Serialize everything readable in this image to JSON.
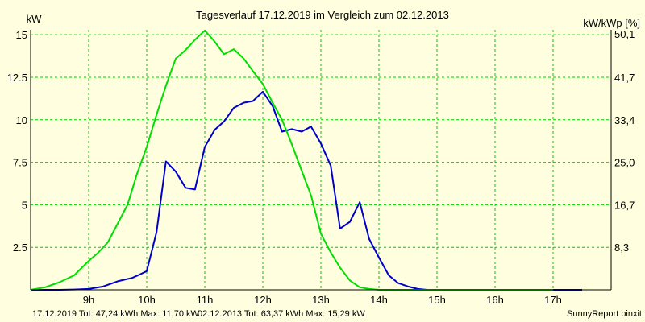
{
  "chart_data": {
    "type": "line",
    "title": "Tagesverlauf 17.12.2019 im Vergleich zum 02.12.2013",
    "ylabel_left": "kW",
    "ylabel_right": "kW/kWp [%]",
    "ylim": [
      0,
      15.29
    ],
    "y_ticks": [
      2.5,
      5,
      7.5,
      10,
      12.5,
      15
    ],
    "y_tick_labels": [
      "2.5",
      "5",
      "7.5",
      "10",
      "12.5",
      "15"
    ],
    "right_ticks": [
      2.5,
      5,
      7.5,
      10,
      12.5,
      15.05
    ],
    "right_tick_labels": [
      "8,3",
      "16,7",
      "25,0",
      "33,4",
      "41,7",
      "50,1"
    ],
    "xlim": [
      8.0,
      18.0
    ],
    "x_ticks": [
      9,
      10,
      11,
      12,
      13,
      14,
      15,
      16,
      17
    ],
    "x_tick_labels": [
      "9h",
      "10h",
      "11h",
      "12h",
      "13h",
      "14h",
      "15h",
      "16h",
      "17h"
    ],
    "grid": true,
    "colors": {
      "background": "#ffffe0",
      "grid": "#00cc00",
      "axis": "#000000",
      "series_2019": "#0000cc",
      "series_2013": "#00dd00"
    },
    "series": [
      {
        "name": "17.12.2019",
        "color": "#0000cc",
        "x": [
          8.0,
          8.5,
          8.75,
          9.0,
          9.25,
          9.5,
          9.75,
          9.85,
          10.0,
          10.17,
          10.33,
          10.5,
          10.67,
          10.83,
          11.0,
          11.17,
          11.33,
          11.5,
          11.67,
          11.83,
          12.0,
          12.17,
          12.33,
          12.5,
          12.67,
          12.83,
          13.0,
          13.17,
          13.33,
          13.5,
          13.67,
          13.83,
          14.0,
          14.17,
          14.33,
          14.5,
          14.67,
          14.83,
          15.0,
          15.17,
          15.33,
          15.5,
          15.67,
          15.83,
          16.0,
          16.17,
          16.33,
          16.5,
          16.67,
          16.83,
          17.0,
          17.25,
          17.5
        ],
        "values": [
          0.0,
          0.0,
          0.02,
          0.05,
          0.2,
          0.5,
          0.7,
          0.85,
          1.1,
          3.4,
          7.55,
          6.95,
          6.0,
          5.9,
          8.4,
          9.4,
          9.9,
          10.7,
          11.0,
          11.1,
          11.65,
          10.8,
          9.3,
          9.45,
          9.3,
          9.6,
          8.6,
          7.3,
          3.6,
          4.0,
          5.15,
          3.0,
          1.9,
          0.85,
          0.4,
          0.2,
          0.05,
          0.0,
          0.0,
          0.0,
          0.0,
          0.0,
          0.0,
          0.0,
          0.0,
          0.0,
          0.0,
          0.0,
          0.0,
          0.0,
          0.0,
          0.0,
          0.0
        ]
      },
      {
        "name": "02.12.2013",
        "color": "#00dd00",
        "x": [
          8.0,
          8.25,
          8.5,
          8.75,
          9.0,
          9.17,
          9.33,
          9.5,
          9.67,
          9.83,
          10.0,
          10.17,
          10.33,
          10.5,
          10.67,
          10.83,
          11.0,
          11.17,
          11.33,
          11.5,
          11.67,
          11.83,
          12.0,
          12.17,
          12.33,
          12.5,
          12.67,
          12.83,
          13.0,
          13.17,
          13.33,
          13.5,
          13.67,
          13.83,
          14.0,
          14.17,
          14.33,
          14.5,
          14.67,
          14.83,
          15.0,
          15.17,
          15.33,
          15.5,
          15.67,
          15.83,
          16.0,
          16.25,
          16.5,
          16.75,
          17.0
        ],
        "values": [
          0.0,
          0.15,
          0.45,
          0.85,
          1.7,
          2.2,
          2.8,
          3.9,
          5.0,
          6.8,
          8.4,
          10.3,
          12.0,
          13.6,
          14.1,
          14.7,
          15.25,
          14.6,
          13.85,
          14.15,
          13.6,
          12.85,
          12.1,
          11.0,
          10.0,
          8.55,
          7.0,
          5.55,
          3.3,
          2.2,
          1.3,
          0.55,
          0.15,
          0.05,
          0.0,
          0.0,
          0.0,
          0.0,
          0.0,
          0.0,
          0.0,
          0.0,
          0.0,
          0.0,
          0.0,
          0.0,
          0.0,
          0.0,
          0.0,
          0.0,
          0.0
        ]
      }
    ],
    "footer": {
      "series_2019_summary": "17.12.2019 Tot: 47,24 kWh Max: 11,70 kW",
      "series_2013_summary": "02.12.2013 Tot: 63,37 kWh Max: 15,29 kW",
      "credit": "SunnyReport pinxit"
    }
  }
}
